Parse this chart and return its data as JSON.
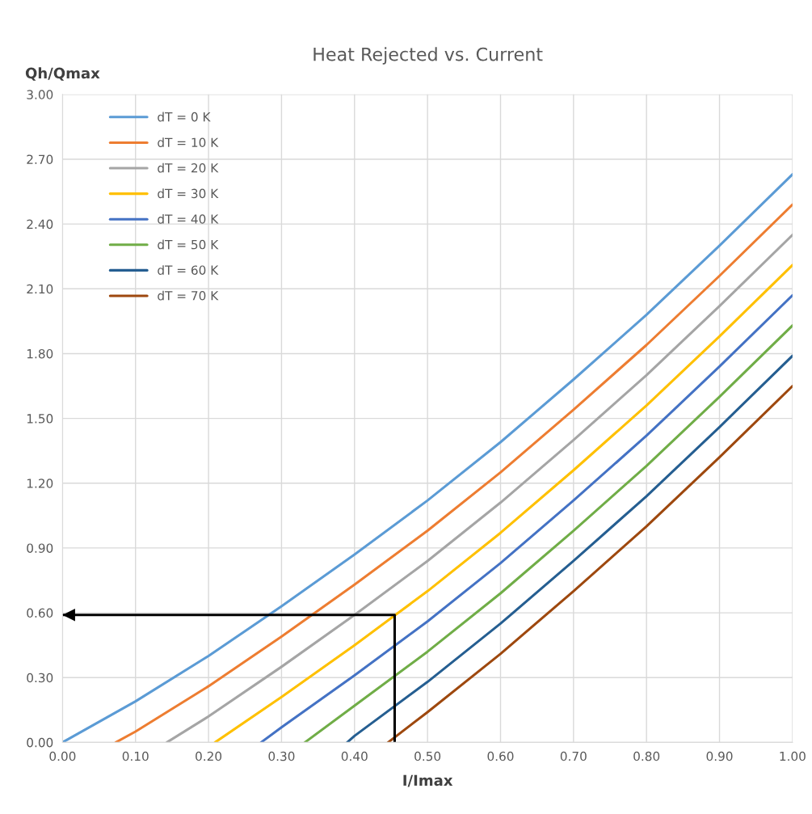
{
  "chart_data": {
    "type": "line",
    "title": "Heat Rejected vs. Current",
    "xlabel": "I/Imax",
    "ylabel": "Qh/Qmax",
    "xlim": [
      0,
      1
    ],
    "ylim": [
      0,
      3
    ],
    "xticks": [
      {
        "value": 0,
        "label": "0.00"
      },
      {
        "value": 0.1,
        "label": "0.10"
      },
      {
        "value": 0.2,
        "label": "0.20"
      },
      {
        "value": 0.3,
        "label": "0.30"
      },
      {
        "value": 0.4,
        "label": "0.40"
      },
      {
        "value": 0.5,
        "label": "0.50"
      },
      {
        "value": 0.6,
        "label": "0.60"
      },
      {
        "value": 0.7,
        "label": "0.70"
      },
      {
        "value": 0.8,
        "label": "0.80"
      },
      {
        "value": 0.9,
        "label": "0.90"
      },
      {
        "value": 1,
        "label": "1.00"
      }
    ],
    "yticks": [
      {
        "value": 0,
        "label": "0.00"
      },
      {
        "value": 0.3,
        "label": "0.30"
      },
      {
        "value": 0.6,
        "label": "0.60"
      },
      {
        "value": 0.9,
        "label": "0.90"
      },
      {
        "value": 1.2,
        "label": "1.20"
      },
      {
        "value": 1.5,
        "label": "1.50"
      },
      {
        "value": 1.8,
        "label": "1.80"
      },
      {
        "value": 2.1,
        "label": "2.10"
      },
      {
        "value": 2.4,
        "label": "2.40"
      },
      {
        "value": 2.7,
        "label": "2.70"
      },
      {
        "value": 3,
        "label": "3.00"
      }
    ],
    "grid": true,
    "legend": "top left",
    "marker": "none",
    "line_style": "solid",
    "series": [
      {
        "name": "dT = 0 K",
        "color": "#5b9bd5",
        "x": [
          0,
          0.1,
          0.2,
          0.3,
          0.4,
          0.5,
          0.6,
          0.7,
          0.8,
          0.9,
          1.0
        ],
        "values": [
          0,
          0.19,
          0.4,
          0.63,
          0.87,
          1.12,
          1.39,
          1.68,
          1.98,
          2.3,
          2.63
        ]
      },
      {
        "name": "dT = 10 K",
        "color": "#ed7d31",
        "x": [
          0.073,
          0.1,
          0.2,
          0.3,
          0.4,
          0.5,
          0.6,
          0.7,
          0.8,
          0.9,
          1.0
        ],
        "values": [
          0,
          0.05,
          0.26,
          0.49,
          0.73,
          0.98,
          1.25,
          1.54,
          1.84,
          2.16,
          2.49
        ]
      },
      {
        "name": "dT = 20 K",
        "color": "#a5a5a5",
        "x": [
          0.143,
          0.2,
          0.3,
          0.4,
          0.5,
          0.6,
          0.7,
          0.8,
          0.9,
          1.0
        ],
        "values": [
          0,
          0.12,
          0.35,
          0.59,
          0.84,
          1.11,
          1.4,
          1.7,
          2.02,
          2.35
        ]
      },
      {
        "name": "dT = 30 K",
        "color": "#ffc000",
        "x": [
          0.209,
          0.3,
          0.4,
          0.5,
          0.6,
          0.7,
          0.8,
          0.9,
          1.0
        ],
        "values": [
          0,
          0.21,
          0.45,
          0.7,
          0.97,
          1.26,
          1.56,
          1.88,
          2.21
        ]
      },
      {
        "name": "dT = 40 K",
        "color": "#4472c4",
        "x": [
          0.272,
          0.3,
          0.4,
          0.5,
          0.6,
          0.7,
          0.8,
          0.9,
          1.0
        ],
        "values": [
          0,
          0.07,
          0.31,
          0.56,
          0.83,
          1.12,
          1.42,
          1.74,
          2.07
        ]
      },
      {
        "name": "dT = 50 K",
        "color": "#70ad47",
        "x": [
          0.332,
          0.4,
          0.5,
          0.6,
          0.7,
          0.8,
          0.9,
          1.0
        ],
        "values": [
          0,
          0.17,
          0.42,
          0.69,
          0.98,
          1.28,
          1.6,
          1.93
        ]
      },
      {
        "name": "dT = 60 K",
        "color": "#255e91",
        "x": [
          0.39,
          0.4,
          0.5,
          0.6,
          0.7,
          0.8,
          0.9,
          1.0
        ],
        "values": [
          0,
          0.03,
          0.28,
          0.55,
          0.84,
          1.14,
          1.46,
          1.79
        ]
      },
      {
        "name": "dT = 70 K",
        "color": "#9e480e",
        "x": [
          0.446,
          0.5,
          0.6,
          0.7,
          0.8,
          0.9,
          1.0
        ],
        "values": [
          0,
          0.14,
          0.41,
          0.7,
          1.0,
          1.32,
          1.65
        ]
      },
      {
        "color": "#000000",
        "x": [
          0.455,
          0.455,
          0
        ],
        "values": [
          0,
          0.59,
          0.59
        ]
      }
    ]
  }
}
